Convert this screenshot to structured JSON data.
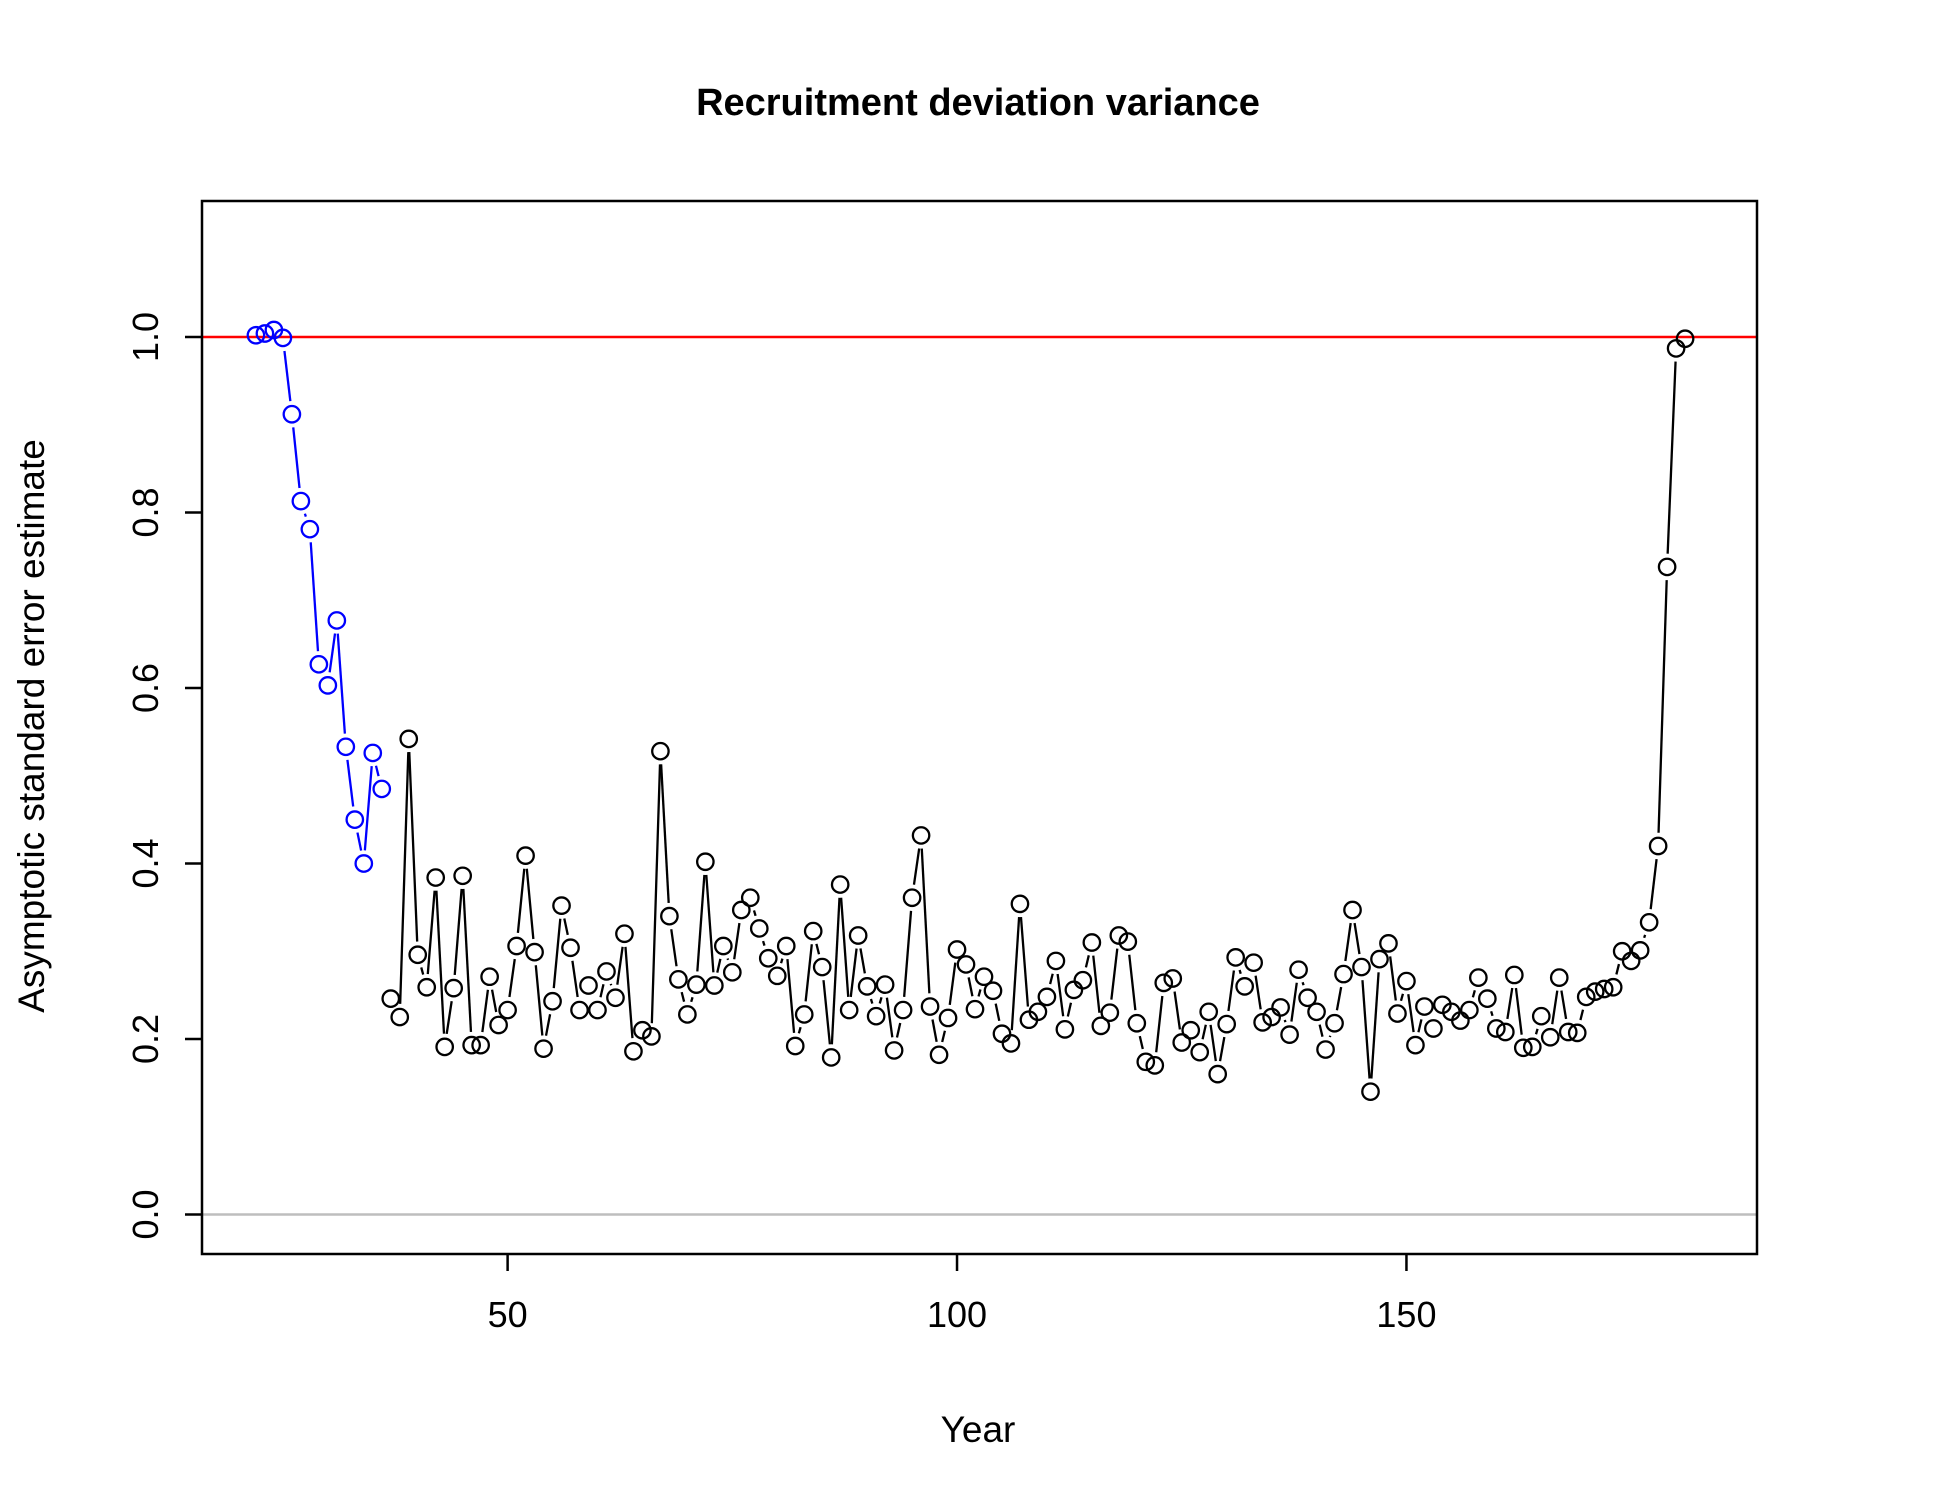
{
  "chart_data": {
    "type": "line",
    "title": "Recruitment deviation variance",
    "xlabel": "Year",
    "ylabel": "Asymptotic standard error estimate",
    "xlim": [
      16,
      189
    ],
    "ylim": [
      -0.045,
      1.155
    ],
    "x_ticks": [
      50,
      100,
      150
    ],
    "y_ticks": [
      0.0,
      0.2,
      0.4,
      0.6,
      0.8,
      1.0
    ],
    "x_tick_labels": [
      "50",
      "100",
      "150"
    ],
    "y_tick_labels": [
      "0.0",
      "0.2",
      "0.4",
      "0.6",
      "0.8",
      "1.0"
    ],
    "grid": false,
    "reference_lines": [
      {
        "y": 1.0,
        "color": "#ff0000"
      },
      {
        "y": 0.0,
        "color": "#bebebe"
      }
    ],
    "series": [
      {
        "color": "#0000ff",
        "x": [
          22,
          23,
          24,
          25,
          26,
          27,
          28,
          29,
          30,
          31,
          32,
          33,
          34,
          35,
          36
        ],
        "y": [
          1.002,
          1.004,
          1.008,
          0.999,
          0.912,
          0.813,
          0.781,
          0.627,
          0.603,
          0.677,
          0.533,
          0.45,
          0.4,
          0.526,
          0.485
        ]
      },
      {
        "color": "#000000",
        "x": [
          37,
          38,
          39,
          40,
          41,
          42,
          43,
          44,
          45,
          46,
          47,
          48,
          49,
          50,
          51,
          52,
          53,
          54,
          55,
          56,
          57,
          58,
          59,
          60,
          61,
          62,
          63,
          64,
          65,
          66,
          67,
          68,
          69,
          70,
          71,
          72,
          73,
          74,
          75,
          76,
          77,
          78,
          79,
          80,
          81,
          82,
          83,
          84,
          85,
          86,
          87,
          88,
          89,
          90,
          91,
          92,
          93,
          94,
          95,
          96,
          97,
          98,
          99,
          100,
          101,
          102,
          103,
          104,
          105,
          106,
          107,
          108,
          109,
          110,
          111,
          112,
          113,
          114,
          115,
          116,
          117,
          118,
          119,
          120,
          121,
          122,
          123,
          124,
          125,
          126,
          127,
          128,
          129,
          130,
          131,
          132,
          133,
          134,
          135,
          136,
          137,
          138,
          139,
          140,
          141,
          142,
          143,
          144,
          145,
          146,
          147,
          148,
          149,
          150,
          151,
          152,
          153,
          154,
          155,
          156,
          157,
          158,
          159,
          160,
          161,
          162,
          163,
          164,
          165,
          166,
          167,
          168,
          169,
          170,
          171,
          172,
          173,
          174,
          175,
          176,
          177,
          178,
          179,
          180,
          181
        ],
        "y": [
          0.246,
          0.225,
          0.542,
          0.296,
          0.259,
          0.384,
          0.191,
          0.258,
          0.386,
          0.193,
          0.193,
          0.271,
          0.216,
          0.233,
          0.306,
          0.409,
          0.299,
          0.189,
          0.243,
          0.352,
          0.304,
          0.233,
          0.261,
          0.233,
          0.277,
          0.247,
          0.32,
          0.186,
          0.21,
          0.203,
          0.528,
          0.34,
          0.268,
          0.228,
          0.262,
          0.402,
          0.261,
          0.306,
          0.276,
          0.347,
          0.361,
          0.326,
          0.292,
          0.272,
          0.306,
          0.192,
          0.228,
          0.323,
          0.282,
          0.179,
          0.376,
          0.233,
          0.318,
          0.26,
          0.226,
          0.262,
          0.187,
          0.233,
          0.361,
          0.432,
          0.237,
          0.182,
          0.224,
          0.302,
          0.285,
          0.234,
          0.271,
          0.255,
          0.206,
          0.195,
          0.354,
          0.222,
          0.231,
          0.248,
          0.289,
          0.211,
          0.256,
          0.267,
          0.31,
          0.215,
          0.23,
          0.318,
          0.311,
          0.218,
          0.174,
          0.17,
          0.264,
          0.269,
          0.196,
          0.21,
          0.185,
          0.231,
          0.16,
          0.217,
          0.293,
          0.26,
          0.287,
          0.219,
          0.225,
          0.236,
          0.205,
          0.279,
          0.247,
          0.231,
          0.188,
          0.218,
          0.274,
          0.347,
          0.282,
          0.14,
          0.291,
          0.309,
          0.229,
          0.266,
          0.193,
          0.237,
          0.212,
          0.239,
          0.231,
          0.221,
          0.233,
          0.27,
          0.246,
          0.212,
          0.208,
          0.273,
          0.19,
          0.191,
          0.226,
          0.202,
          0.27,
          0.208,
          0.207,
          0.248,
          0.254,
          0.257,
          0.259,
          0.3,
          0.289,
          0.301,
          0.333,
          0.42,
          0.738,
          0.987,
          0.998
        ]
      }
    ]
  }
}
